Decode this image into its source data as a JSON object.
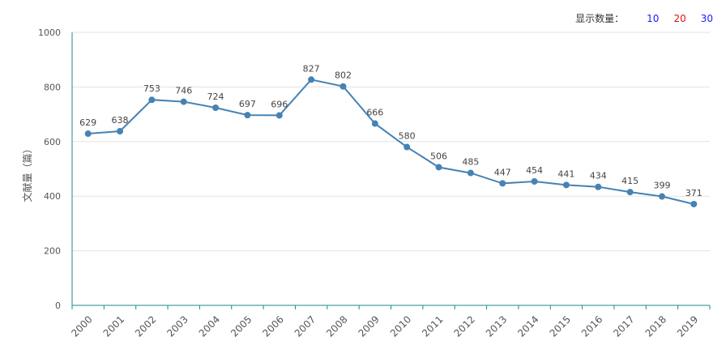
{
  "toolbar": {
    "label": "显示数量：",
    "options": [
      {
        "label": "10",
        "color": "#1a1aff"
      },
      {
        "label": "20",
        "color": "#e01010"
      },
      {
        "label": "30",
        "color": "#1a1aff"
      }
    ]
  },
  "chart_data": {
    "type": "line",
    "title": "",
    "xlabel": "",
    "ylabel": "文献量（篇）",
    "ylim": [
      0,
      1000
    ],
    "yticks": [
      0,
      200,
      400,
      600,
      800,
      1000
    ],
    "grid": true,
    "line_color": "#4682b4",
    "axis_color": "#1a8c8c",
    "categories": [
      "2000",
      "2001",
      "2002",
      "2003",
      "2004",
      "2005",
      "2006",
      "2007",
      "2008",
      "2009",
      "2010",
      "2011",
      "2012",
      "2013",
      "2014",
      "2015",
      "2016",
      "2017",
      "2018",
      "2019"
    ],
    "values": [
      629,
      638,
      753,
      746,
      724,
      697,
      696,
      827,
      802,
      666,
      580,
      506,
      485,
      447,
      454,
      441,
      434,
      415,
      399,
      371
    ]
  }
}
